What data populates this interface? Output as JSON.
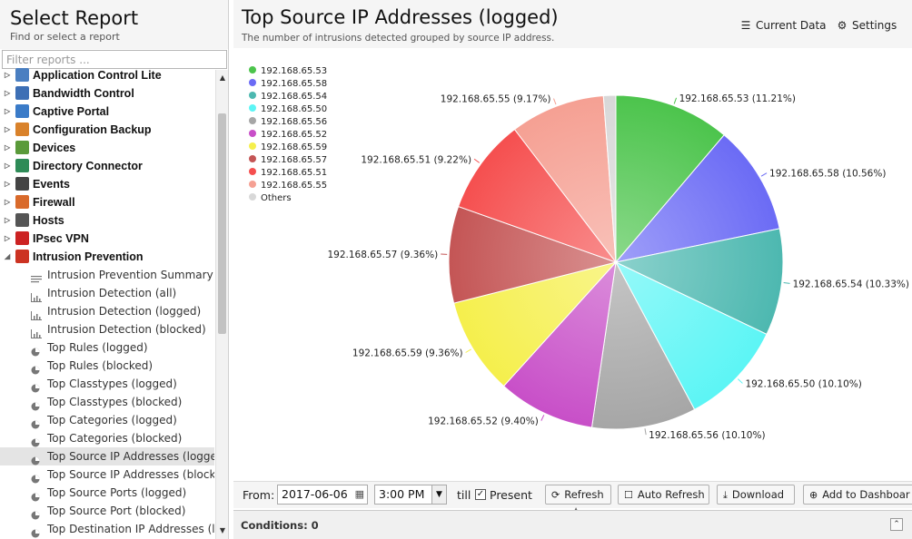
{
  "left": {
    "title": "Select Report",
    "subtitle": "Find or select a report",
    "filter_placeholder": "Filter reports ...",
    "categories": [
      {
        "label": "Application Control Lite",
        "icon": "app-control-icon",
        "color": "#4a7fc1"
      },
      {
        "label": "Bandwidth Control",
        "icon": "bandwidth-icon",
        "color": "#3d6fb5"
      },
      {
        "label": "Captive Portal",
        "icon": "captive-portal-icon",
        "color": "#3a7bc8"
      },
      {
        "label": "Configuration Backup",
        "icon": "config-backup-icon",
        "color": "#d9822b"
      },
      {
        "label": "Devices",
        "icon": "devices-icon",
        "color": "#5a9a3a"
      },
      {
        "label": "Directory Connector",
        "icon": "directory-icon",
        "color": "#2e8b57"
      },
      {
        "label": "Events",
        "icon": "events-icon",
        "color": "#444444"
      },
      {
        "label": "Firewall",
        "icon": "firewall-icon",
        "color": "#d96a2b"
      },
      {
        "label": "Hosts",
        "icon": "hosts-icon",
        "color": "#555555"
      },
      {
        "label": "IPsec VPN",
        "icon": "ipsec-icon",
        "color": "#cc2222"
      },
      {
        "label": "Intrusion Prevention",
        "icon": "intrusion-icon",
        "color": "#cc3322",
        "expanded": true
      }
    ],
    "items": [
      {
        "label": "Intrusion Prevention Summary",
        "icon": "text-report-icon"
      },
      {
        "label": "Intrusion Detection (all)",
        "icon": "bar-chart-icon"
      },
      {
        "label": "Intrusion Detection (logged)",
        "icon": "bar-chart-icon"
      },
      {
        "label": "Intrusion Detection (blocked)",
        "icon": "bar-chart-icon"
      },
      {
        "label": "Top Rules (logged)",
        "icon": "pie-chart-icon"
      },
      {
        "label": "Top Rules (blocked)",
        "icon": "pie-chart-icon"
      },
      {
        "label": "Top Classtypes (logged)",
        "icon": "pie-chart-icon"
      },
      {
        "label": "Top Classtypes (blocked)",
        "icon": "pie-chart-icon"
      },
      {
        "label": "Top Categories (logged)",
        "icon": "pie-chart-icon"
      },
      {
        "label": "Top Categories (blocked)",
        "icon": "pie-chart-icon"
      },
      {
        "label": "Top Source IP Addresses (logged)",
        "icon": "pie-chart-icon",
        "selected": true
      },
      {
        "label": "Top Source IP Addresses (blocked)",
        "icon": "pie-chart-icon"
      },
      {
        "label": "Top Source Ports (logged)",
        "icon": "pie-chart-icon"
      },
      {
        "label": "Top Source Port (blocked)",
        "icon": "pie-chart-icon"
      },
      {
        "label": "Top Destination IP Addresses (lo...",
        "icon": "pie-chart-icon"
      }
    ]
  },
  "report": {
    "title": "Top Source IP Addresses (logged)",
    "subtitle": "The number of intrusions detected grouped by source IP address.",
    "current_data_label": "Current Data",
    "settings_label": "Settings"
  },
  "toolbar": {
    "from_label": "From:",
    "date": "2017-06-06",
    "time": "3:00 PM",
    "till_label": "till",
    "present_label": "Present",
    "present_checked": true,
    "refresh_label": "Refresh",
    "auto_refresh_label": "Auto Refresh",
    "download_label": "Download",
    "add_dashboard_label": "Add to Dashboar"
  },
  "conditions": {
    "label": "Conditions: 0"
  },
  "chart_data": {
    "type": "pie",
    "title": "",
    "legend_position": "top-left",
    "slices": [
      {
        "name": "192.168.65.53",
        "value": 11.21,
        "label": "192.168.65.53 (11.21%)",
        "color": "#4cc44c"
      },
      {
        "name": "192.168.65.58",
        "value": 10.56,
        "label": "192.168.65.58 (10.56%)",
        "color": "#6b6bf5"
      },
      {
        "name": "192.168.65.54",
        "value": 10.33,
        "label": "192.168.65.54 (10.33%)",
        "color": "#4db8b0"
      },
      {
        "name": "192.168.65.50",
        "value": 10.1,
        "label": "192.168.65.50 (10.10%)",
        "color": "#5cf5f5"
      },
      {
        "name": "192.168.65.56",
        "value": 10.1,
        "label": "192.168.65.56 (10.10%)",
        "color": "#a6a6a6"
      },
      {
        "name": "192.168.65.52",
        "value": 9.4,
        "label": "192.168.65.52 (9.40%)",
        "color": "#c84fc8"
      },
      {
        "name": "192.168.65.59",
        "value": 9.36,
        "label": "192.168.65.59 (9.36%)",
        "color": "#f5ef4c"
      },
      {
        "name": "192.168.65.57",
        "value": 9.36,
        "label": "192.168.65.57 (9.36%)",
        "color": "#c45555"
      },
      {
        "name": "192.168.65.51",
        "value": 9.22,
        "label": "192.168.65.51 (9.22%)",
        "color": "#f54f4f"
      },
      {
        "name": "192.168.65.55",
        "value": 9.17,
        "label": "192.168.65.55 (9.17%)",
        "color": "#f5a093"
      },
      {
        "name": "Others",
        "value": 1.19,
        "label": "",
        "color": "#d8d8d8"
      }
    ]
  }
}
